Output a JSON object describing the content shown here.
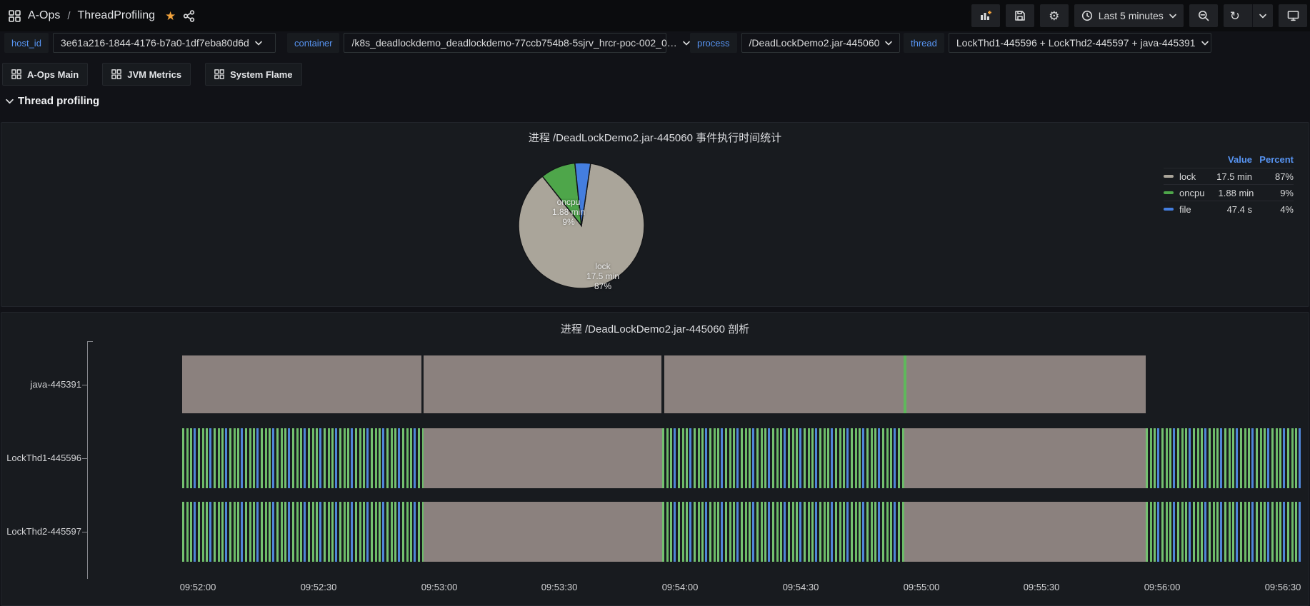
{
  "navbar": {
    "breadcrumb_folder": "A-Ops",
    "breadcrumb_separator": "/",
    "breadcrumb_dashboard": "ThreadProfiling",
    "time_range_label": "Last 5 minutes",
    "icons": [
      "apps-grid-icon",
      "favorite-star-icon",
      "share-icon",
      "add-panel-icon",
      "save-dashboard-icon",
      "dashboard-settings-icon",
      "clock-icon",
      "time-range-caret-icon",
      "zoom-out-icon",
      "refresh-icon",
      "refresh-interval-caret-icon",
      "cycle-view-mode-icon"
    ]
  },
  "variables": [
    {
      "label": "host_id",
      "value": "3e61a216-1844-4176-b7a0-1df7eba80d6d"
    },
    {
      "label": "container",
      "value": "/k8s_deadlockdemo_deadlockdemo-77ccb754b8-5sjrv_hrcr-poc-002_0…"
    },
    {
      "label": "process",
      "value": "/DeadLockDemo2.jar-445060"
    },
    {
      "label": "thread",
      "value": "LockThd1-445596 + LockThd2-445597 + java-445391"
    }
  ],
  "links": [
    {
      "label": "A-Ops Main"
    },
    {
      "label": "JVM Metrics"
    },
    {
      "label": "System Flame"
    }
  ],
  "row_header": "Thread profiling",
  "pie_panel": {
    "title": "进程 /DeadLockDemo2.jar-445060 事件执行时间统计",
    "legend_headers": {
      "value": "Value",
      "percent": "Percent"
    },
    "slices": [
      {
        "name": "lock",
        "value": "17.5 min",
        "percent": "87%",
        "color": "#aaa59a"
      },
      {
        "name": "oncpu",
        "value": "1.88 min",
        "percent": "9%",
        "color": "#4ea64a"
      },
      {
        "name": "file",
        "value": "47.4 s",
        "percent": "4%",
        "color": "#447edf"
      }
    ]
  },
  "timeline_panel": {
    "title": "进程 /DeadLockDemo2.jar-445060 剖析",
    "colors": {
      "lock_bar": "#8b817e",
      "oncpu_stripe": "#74c170",
      "file_stripe": "#4f86d8"
    },
    "x_ticks": [
      {
        "label": "09:52:00",
        "x": 275
      },
      {
        "label": "09:52:30",
        "x": 444
      },
      {
        "label": "09:53:00",
        "x": 613
      },
      {
        "label": "09:53:30",
        "x": 781
      },
      {
        "label": "09:54:00",
        "x": 950
      },
      {
        "label": "09:54:30",
        "x": 1119
      },
      {
        "label": "09:55:00",
        "x": 1288
      },
      {
        "label": "09:55:30",
        "x": 1456
      },
      {
        "label": "09:56:00",
        "x": 1625
      },
      {
        "label": "09:56:30",
        "x": 1794
      }
    ],
    "rows": [
      {
        "label": "java-445391",
        "y": 60,
        "h": 81,
        "segments": [
          {
            "k": "lock",
            "x0": 253,
            "x1": 588
          },
          {
            "k": "lock",
            "x0": 591,
            "x1": 924
          },
          {
            "k": "lock",
            "x0": 928,
            "x1": 1263
          },
          {
            "k": "mark",
            "x0": 1263,
            "x1": 1267
          },
          {
            "k": "lock",
            "x0": 1267,
            "x1": 1602
          }
        ]
      },
      {
        "label": "LockThd1-445596",
        "y": 162,
        "h": 84,
        "segments": [
          {
            "k": "stripe",
            "x0": 253,
            "x1": 591
          },
          {
            "k": "lock",
            "x0": 591,
            "x1": 925
          },
          {
            "k": "stripe",
            "x0": 925,
            "x1": 1264
          },
          {
            "k": "lock",
            "x0": 1264,
            "x1": 1602
          },
          {
            "k": "stripe",
            "x0": 1602,
            "x1": 1821
          }
        ]
      },
      {
        "label": "LockThd2-445597",
        "y": 265,
        "h": 84,
        "segments": [
          {
            "k": "stripe",
            "x0": 253,
            "x1": 591
          },
          {
            "k": "lock",
            "x0": 591,
            "x1": 925
          },
          {
            "k": "stripe",
            "x0": 925,
            "x1": 1264
          },
          {
            "k": "lock",
            "x0": 1264,
            "x1": 1602
          },
          {
            "k": "stripe",
            "x0": 1602,
            "x1": 1821
          }
        ]
      }
    ]
  }
}
